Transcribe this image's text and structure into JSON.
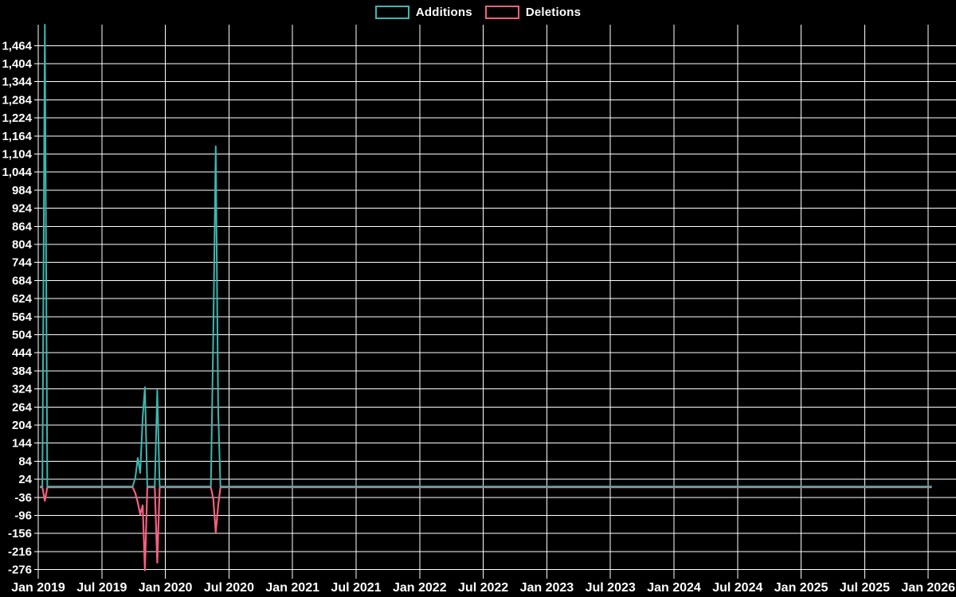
{
  "chart": {
    "background": "#000000",
    "grid_color": "#ffffff",
    "text_color": "#ffffff",
    "legend": {
      "position": "top-center",
      "items": [
        {
          "label": "Additions",
          "color": "#3cb7b2"
        },
        {
          "label": "Deletions",
          "color": "#f6607e"
        }
      ]
    },
    "chart_data": {
      "type": "line",
      "title": "",
      "xlabel": "",
      "ylabel": "",
      "grid": true,
      "x_axis": {
        "tick_labels": [
          "Jan 2019",
          "Jul 2019",
          "Jan 2020",
          "Jul 2020",
          "Jan 2021",
          "Jul 2021",
          "Jan 2022",
          "Jul 2022",
          "Jan 2023",
          "Jul 2023",
          "Jan 2024",
          "Jul 2024",
          "Jan 2025",
          "Jul 2025",
          "Jan 2026"
        ],
        "range_start": "2019-01-01",
        "range_end": "2026-01-31"
      },
      "y_axis": {
        "tick_labels": [
          "1,464",
          "1,404",
          "1,344",
          "1,284",
          "1,224",
          "1,164",
          "1,104",
          "1,044",
          "984",
          "924",
          "864",
          "804",
          "744",
          "684",
          "624",
          "564",
          "504",
          "444",
          "384",
          "324",
          "264",
          "204",
          "144",
          "84",
          "24",
          "-36",
          "-96",
          "-156",
          "-216",
          "-276"
        ],
        "min": -276,
        "max": 1464,
        "step": 60,
        "note": "additions spike at Jan 2019 is clipped by the top edge of the plot (~1,520+)"
      },
      "dates": [
        "2019-01-06",
        "2019-01-13",
        "2019-01-20",
        "2019-01-27",
        "2019-09-29",
        "2019-10-06",
        "2019-10-13",
        "2019-10-20",
        "2019-10-27",
        "2019-11-03",
        "2019-11-10",
        "2019-12-01",
        "2019-12-08",
        "2019-12-15",
        "2020-05-10",
        "2020-05-17",
        "2020-05-24",
        "2020-05-31",
        "2020-06-07",
        "2026-01-11"
      ],
      "series": [
        {
          "name": "Additions",
          "color": "#3cb7b2",
          "values": [
            0,
            0,
            1540,
            0,
            0,
            30,
            95,
            45,
            230,
            330,
            0,
            0,
            320,
            0,
            0,
            520,
            1130,
            250,
            0,
            0
          ],
          "clipped_at_top": true
        },
        {
          "name": "Deletions",
          "color": "#f6607e",
          "values": [
            0,
            0,
            -45,
            0,
            0,
            -20,
            -50,
            -90,
            -60,
            -276,
            0,
            0,
            -250,
            0,
            0,
            -40,
            -150,
            -60,
            0,
            0
          ],
          "clipped_at_top": false
        }
      ]
    }
  }
}
